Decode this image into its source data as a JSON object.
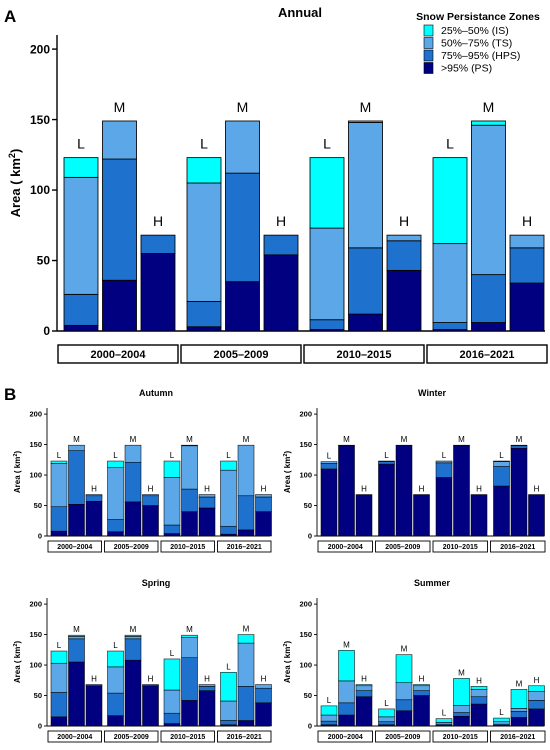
{
  "colors": {
    "IS": "#00FFFF",
    "TS": "#5BA7E8",
    "HPS": "#1E72CE",
    "PS": "#000080"
  },
  "legend": {
    "title": "Snow Persistance Zones",
    "items": [
      {
        "key": "IS",
        "label": "25%–50% (IS)"
      },
      {
        "key": "TS",
        "label": "50%–75% (TS)"
      },
      {
        "key": "HPS",
        "label": "75%–95% (HPS)"
      },
      {
        "key": "PS",
        "label": ">95%   (PS)"
      }
    ]
  },
  "panel_labels": {
    "A": "A",
    "B": "B"
  },
  "chart_data": [
    {
      "id": "annual",
      "type": "bar",
      "stacked": true,
      "title": "Annual",
      "ylabel": "Area ( km²)",
      "ylim": [
        0,
        210
      ],
      "yticks": [
        0,
        50,
        100,
        150,
        200
      ],
      "periods": [
        "2000–2004",
        "2005–2009",
        "2010–2015",
        "2016–2021"
      ],
      "bar_labels": [
        "L",
        "M",
        "H"
      ],
      "stack_order": [
        "PS",
        "HPS",
        "TS",
        "IS"
      ],
      "values": [
        [
          {
            "PS": 4,
            "HPS": 22,
            "TS": 83,
            "IS": 14
          },
          {
            "PS": 36,
            "HPS": 86,
            "TS": 27,
            "IS": 0
          },
          {
            "PS": 55,
            "HPS": 13,
            "TS": 0,
            "IS": 0
          }
        ],
        [
          {
            "PS": 3,
            "HPS": 18,
            "TS": 84,
            "IS": 18
          },
          {
            "PS": 35,
            "HPS": 77,
            "TS": 37,
            "IS": 0
          },
          {
            "PS": 54,
            "HPS": 14,
            "TS": 0,
            "IS": 0
          }
        ],
        [
          {
            "PS": 1,
            "HPS": 7,
            "TS": 65,
            "IS": 50
          },
          {
            "PS": 12,
            "HPS": 47,
            "TS": 89,
            "IS": 1
          },
          {
            "PS": 43,
            "HPS": 21,
            "TS": 4,
            "IS": 0
          }
        ],
        [
          {
            "PS": 1,
            "HPS": 5,
            "TS": 56,
            "IS": 61
          },
          {
            "PS": 6,
            "HPS": 34,
            "TS": 106,
            "IS": 3
          },
          {
            "PS": 34,
            "HPS": 25,
            "TS": 9,
            "IS": 0
          }
        ]
      ]
    },
    {
      "id": "autumn",
      "type": "bar",
      "stacked": true,
      "title": "Autumn",
      "ylabel": "Area ( km²)",
      "ylim": [
        0,
        210
      ],
      "yticks": [
        0,
        50,
        100,
        150,
        200
      ],
      "periods": [
        "2000–2004",
        "2005–2009",
        "2010–2015",
        "2016–2021"
      ],
      "bar_labels": [
        "L",
        "M",
        "H"
      ],
      "stack_order": [
        "PS",
        "HPS",
        "TS",
        "IS"
      ],
      "values": [
        [
          {
            "PS": 8,
            "HPS": 40,
            "TS": 71,
            "IS": 4
          },
          {
            "PS": 52,
            "HPS": 88,
            "TS": 9,
            "IS": 0
          },
          {
            "PS": 57,
            "HPS": 9,
            "TS": 2,
            "IS": 0
          }
        ],
        [
          {
            "PS": 7,
            "HPS": 20,
            "TS": 85,
            "IS": 11
          },
          {
            "PS": 56,
            "HPS": 65,
            "TS": 28,
            "IS": 0
          },
          {
            "PS": 50,
            "HPS": 16,
            "TS": 2,
            "IS": 0
          }
        ],
        [
          {
            "PS": 4,
            "HPS": 14,
            "TS": 78,
            "IS": 27
          },
          {
            "PS": 40,
            "HPS": 37,
            "TS": 71,
            "IS": 1
          },
          {
            "PS": 46,
            "HPS": 18,
            "TS": 4,
            "IS": 0
          }
        ],
        [
          {
            "PS": 3,
            "HPS": 13,
            "TS": 92,
            "IS": 15
          },
          {
            "PS": 10,
            "HPS": 56,
            "TS": 83,
            "IS": 0
          },
          {
            "PS": 40,
            "HPS": 24,
            "TS": 4,
            "IS": 0
          }
        ]
      ]
    },
    {
      "id": "winter",
      "type": "bar",
      "stacked": true,
      "title": "Winter",
      "ylabel": "Area ( km²)",
      "ylim": [
        0,
        210
      ],
      "yticks": [
        0,
        50,
        100,
        150,
        200
      ],
      "periods": [
        "2000–2004",
        "2005–2009",
        "2010–2015",
        "2016–2021"
      ],
      "bar_labels": [
        "L",
        "M",
        "H"
      ],
      "stack_order": [
        "PS",
        "HPS",
        "TS",
        "IS"
      ],
      "values": [
        [
          {
            "PS": 110,
            "HPS": 9,
            "TS": 3,
            "IS": 0
          },
          {
            "PS": 148,
            "HPS": 1,
            "TS": 0,
            "IS": 0
          },
          {
            "PS": 68,
            "HPS": 0,
            "TS": 0,
            "IS": 0
          }
        ],
        [
          {
            "PS": 118,
            "HPS": 4,
            "TS": 1,
            "IS": 0
          },
          {
            "PS": 149,
            "HPS": 0,
            "TS": 0,
            "IS": 0
          },
          {
            "PS": 68,
            "HPS": 0,
            "TS": 0,
            "IS": 0
          }
        ],
        [
          {
            "PS": 96,
            "HPS": 24,
            "TS": 3,
            "IS": 0
          },
          {
            "PS": 148,
            "HPS": 1,
            "TS": 0,
            "IS": 0
          },
          {
            "PS": 68,
            "HPS": 0,
            "TS": 0,
            "IS": 0
          }
        ],
        [
          {
            "PS": 82,
            "HPS": 32,
            "TS": 8,
            "IS": 1
          },
          {
            "PS": 144,
            "HPS": 4,
            "TS": 1,
            "IS": 0
          },
          {
            "PS": 68,
            "HPS": 0,
            "TS": 0,
            "IS": 0
          }
        ]
      ]
    },
    {
      "id": "spring",
      "type": "bar",
      "stacked": true,
      "title": "Spring",
      "ylabel": "Area ( km²)",
      "ylim": [
        0,
        210
      ],
      "yticks": [
        0,
        50,
        100,
        150,
        200
      ],
      "periods": [
        "2000–2004",
        "2005–2009",
        "2010–2015",
        "2016–2021"
      ],
      "bar_labels": [
        "L",
        "M",
        "H"
      ],
      "stack_order": [
        "PS",
        "HPS",
        "TS",
        "IS"
      ],
      "values": [
        [
          {
            "PS": 15,
            "HPS": 40,
            "TS": 48,
            "IS": 20
          },
          {
            "PS": 105,
            "HPS": 38,
            "TS": 4,
            "IS": 2
          },
          {
            "PS": 66,
            "HPS": 2,
            "TS": 0,
            "IS": 0
          }
        ],
        [
          {
            "PS": 17,
            "HPS": 37,
            "TS": 43,
            "IS": 26
          },
          {
            "PS": 108,
            "HPS": 35,
            "TS": 4,
            "IS": 2
          },
          {
            "PS": 66,
            "HPS": 2,
            "TS": 0,
            "IS": 0
          }
        ],
        [
          {
            "PS": 4,
            "HPS": 17,
            "TS": 38,
            "IS": 51
          },
          {
            "PS": 42,
            "HPS": 70,
            "TS": 33,
            "IS": 4
          },
          {
            "PS": 58,
            "HPS": 7,
            "TS": 3,
            "IS": 0
          }
        ],
        [
          {
            "PS": 2,
            "HPS": 7,
            "TS": 32,
            "IS": 47
          },
          {
            "PS": 9,
            "HPS": 56,
            "TS": 71,
            "IS": 14
          },
          {
            "PS": 38,
            "HPS": 24,
            "TS": 6,
            "IS": 0
          }
        ]
      ]
    },
    {
      "id": "summer",
      "type": "bar",
      "stacked": true,
      "title": "Summer",
      "ylabel": "Area ( km²)",
      "ylim": [
        0,
        210
      ],
      "yticks": [
        0,
        50,
        100,
        150,
        200
      ],
      "periods": [
        "2000–2004",
        "2005–2009",
        "2010–2015",
        "2016–2021"
      ],
      "bar_labels": [
        "L",
        "M",
        "H"
      ],
      "stack_order": [
        "PS",
        "HPS",
        "TS",
        "IS"
      ],
      "values": [
        [
          {
            "PS": 2,
            "HPS": 6,
            "TS": 10,
            "IS": 15
          },
          {
            "PS": 18,
            "HPS": 20,
            "TS": 36,
            "IS": 50
          },
          {
            "PS": 48,
            "HPS": 10,
            "TS": 8,
            "IS": 2
          }
        ],
        [
          {
            "PS": 2,
            "HPS": 5,
            "TS": 8,
            "IS": 13
          },
          {
            "PS": 25,
            "HPS": 18,
            "TS": 28,
            "IS": 46
          },
          {
            "PS": 50,
            "HPS": 8,
            "TS": 8,
            "IS": 2
          }
        ],
        [
          {
            "PS": 1,
            "HPS": 2,
            "TS": 3,
            "IS": 6
          },
          {
            "PS": 16,
            "HPS": 6,
            "TS": 12,
            "IS": 44
          },
          {
            "PS": 36,
            "HPS": 12,
            "TS": 12,
            "IS": 5
          }
        ],
        [
          {
            "PS": 1,
            "HPS": 2,
            "TS": 4,
            "IS": 6
          },
          {
            "PS": 14,
            "HPS": 10,
            "TS": 5,
            "IS": 31
          },
          {
            "PS": 28,
            "HPS": 14,
            "TS": 15,
            "IS": 9
          }
        ]
      ]
    }
  ]
}
